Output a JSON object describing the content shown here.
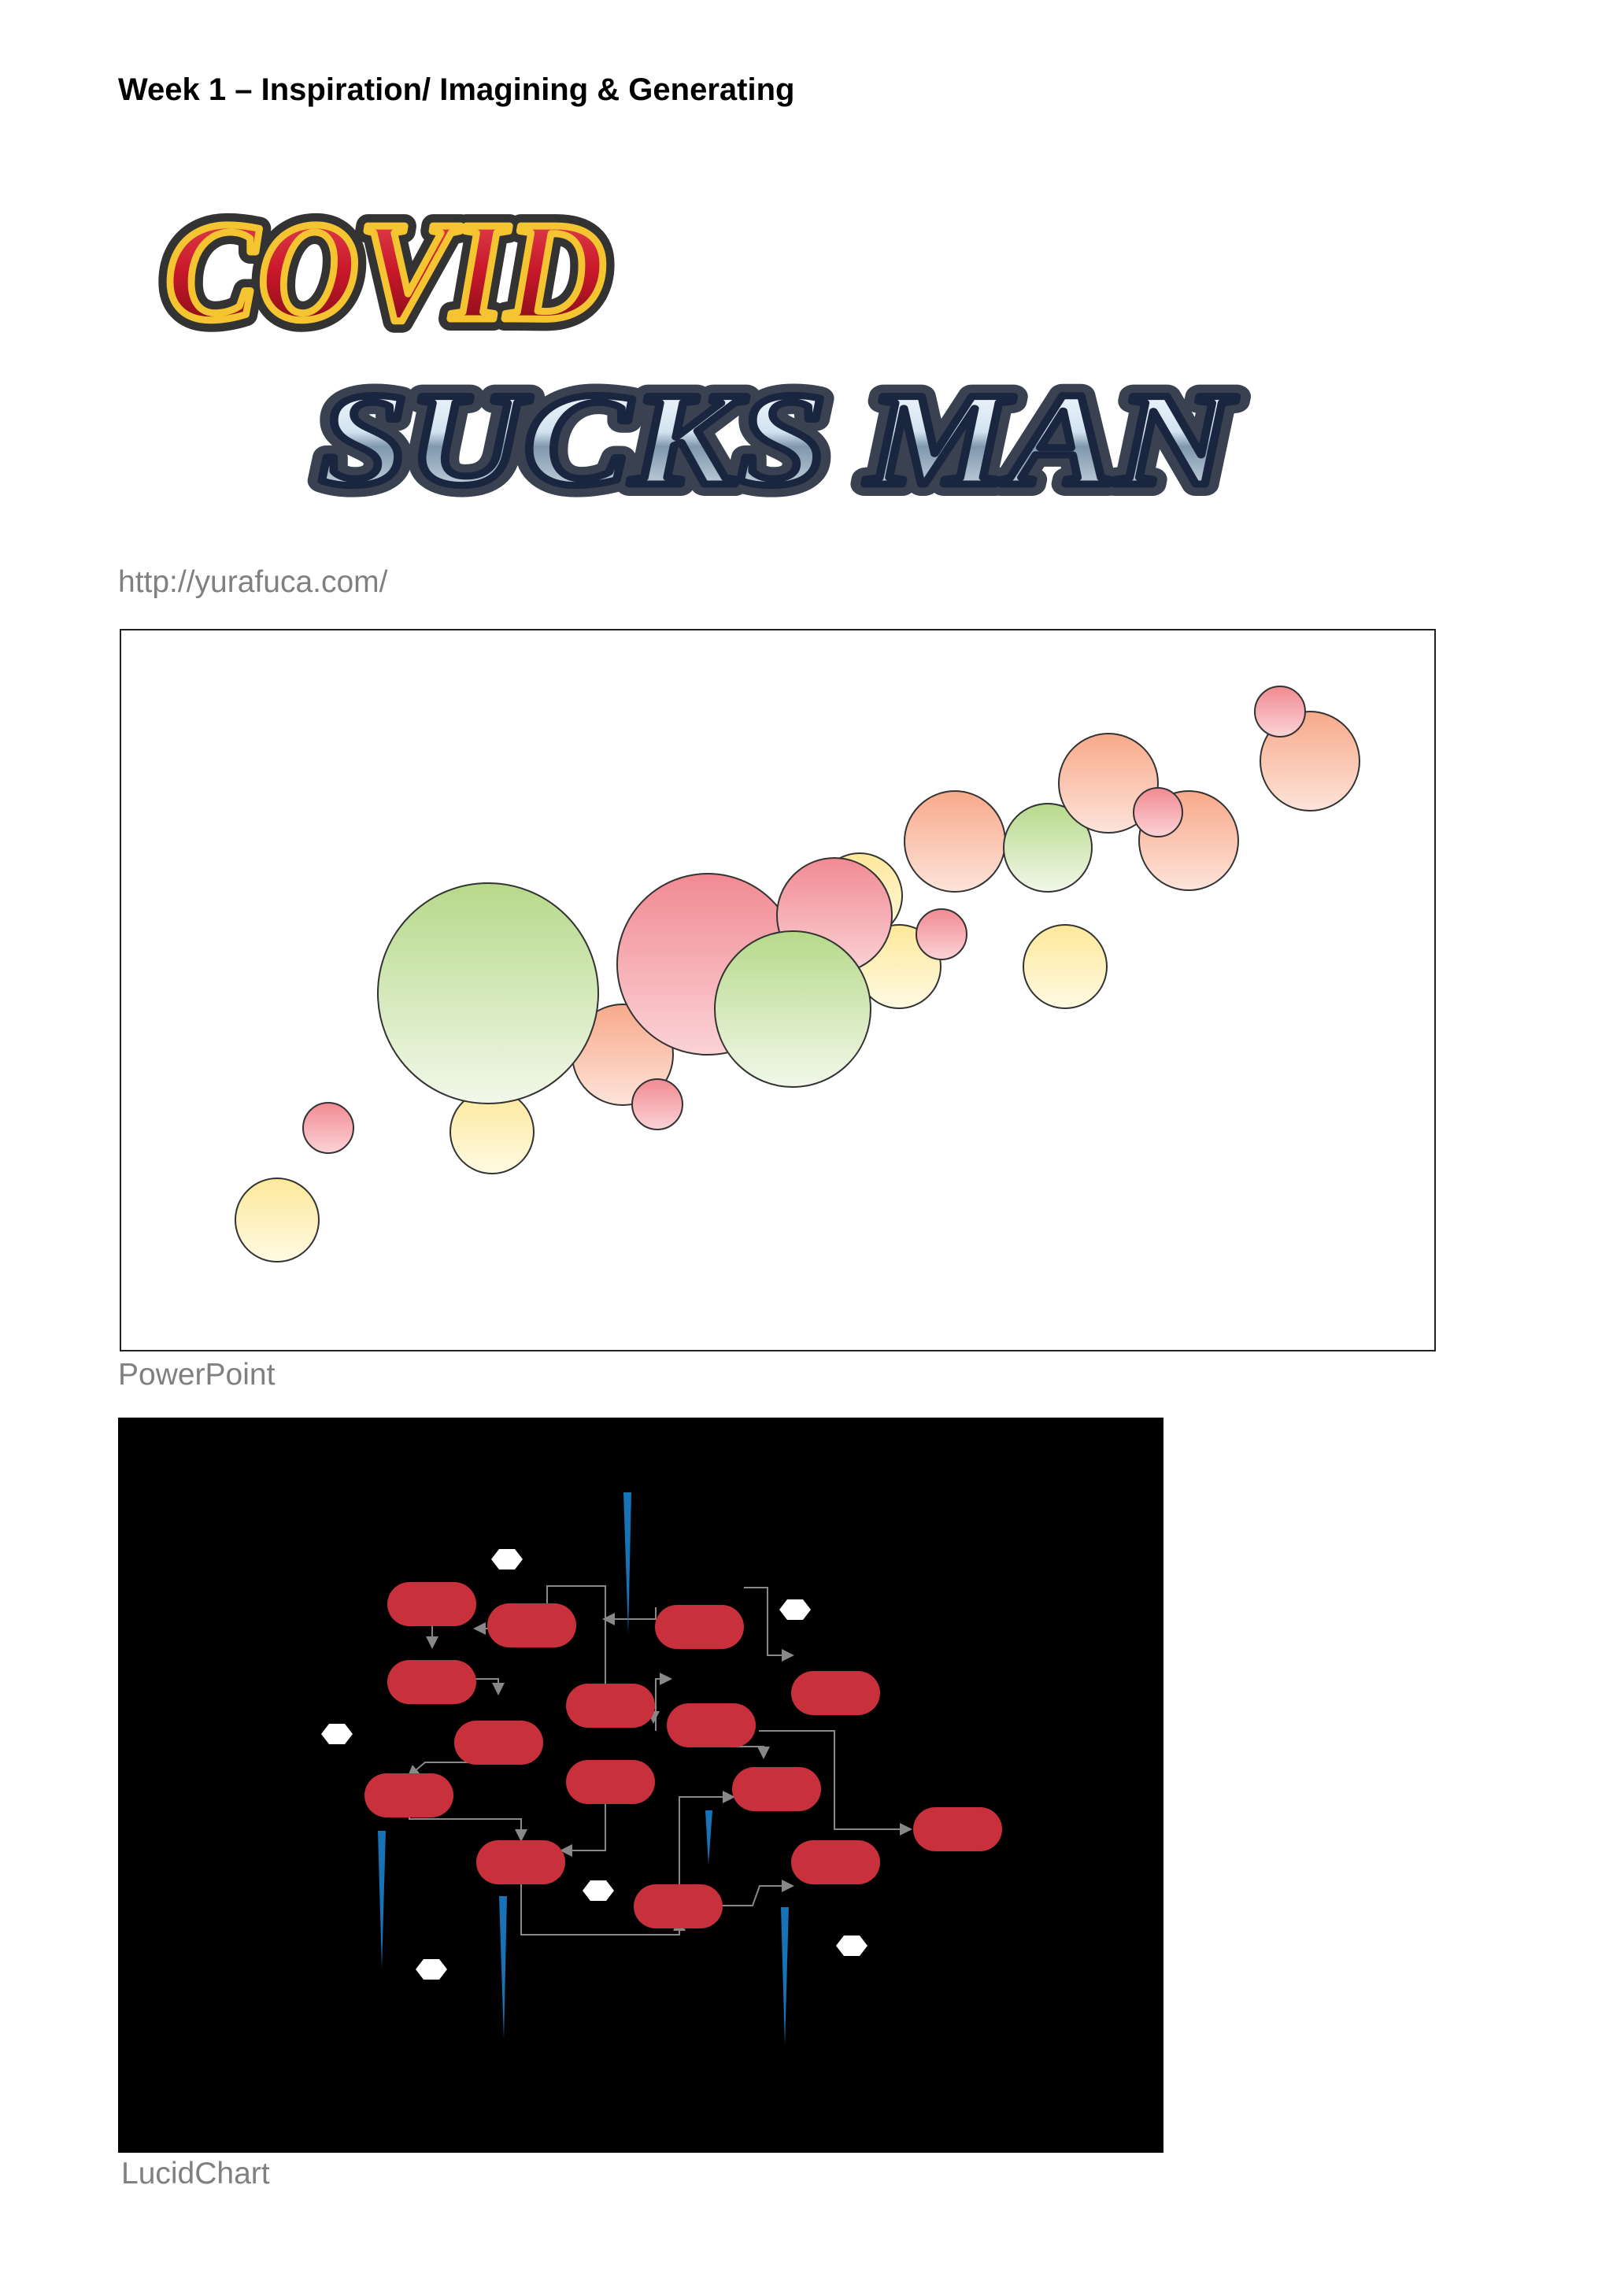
{
  "page": {
    "heading": "Week 1 – Inspiration/ Imagining & Generating"
  },
  "logo": {
    "line1": "COVID",
    "line2": "SUCKS MAN",
    "colors": {
      "covid_fill": "#c8182a",
      "covid_outline": "#f4c531",
      "sucks_fill": "#cfe0ef",
      "sucks_outline": "#1a2540"
    }
  },
  "figures": [
    {
      "caption": "http://yurafuca.com/",
      "kind": "bubble-cluster"
    },
    {
      "caption": "PowerPoint",
      "kind": "flowchart"
    },
    {
      "caption": "LucidChart",
      "kind": "none"
    }
  ],
  "colors": {
    "bubble_green": "#b6d98a",
    "bubble_pink": "#f18a92",
    "bubble_peach": "#f8a98a",
    "bubble_yellow": "#fde89a",
    "flow_background": "#000000",
    "flow_node": "#c8303c",
    "flow_hexagon": "#ffffff",
    "flow_spike": "#1673b8",
    "flow_connector": "#888888"
  }
}
